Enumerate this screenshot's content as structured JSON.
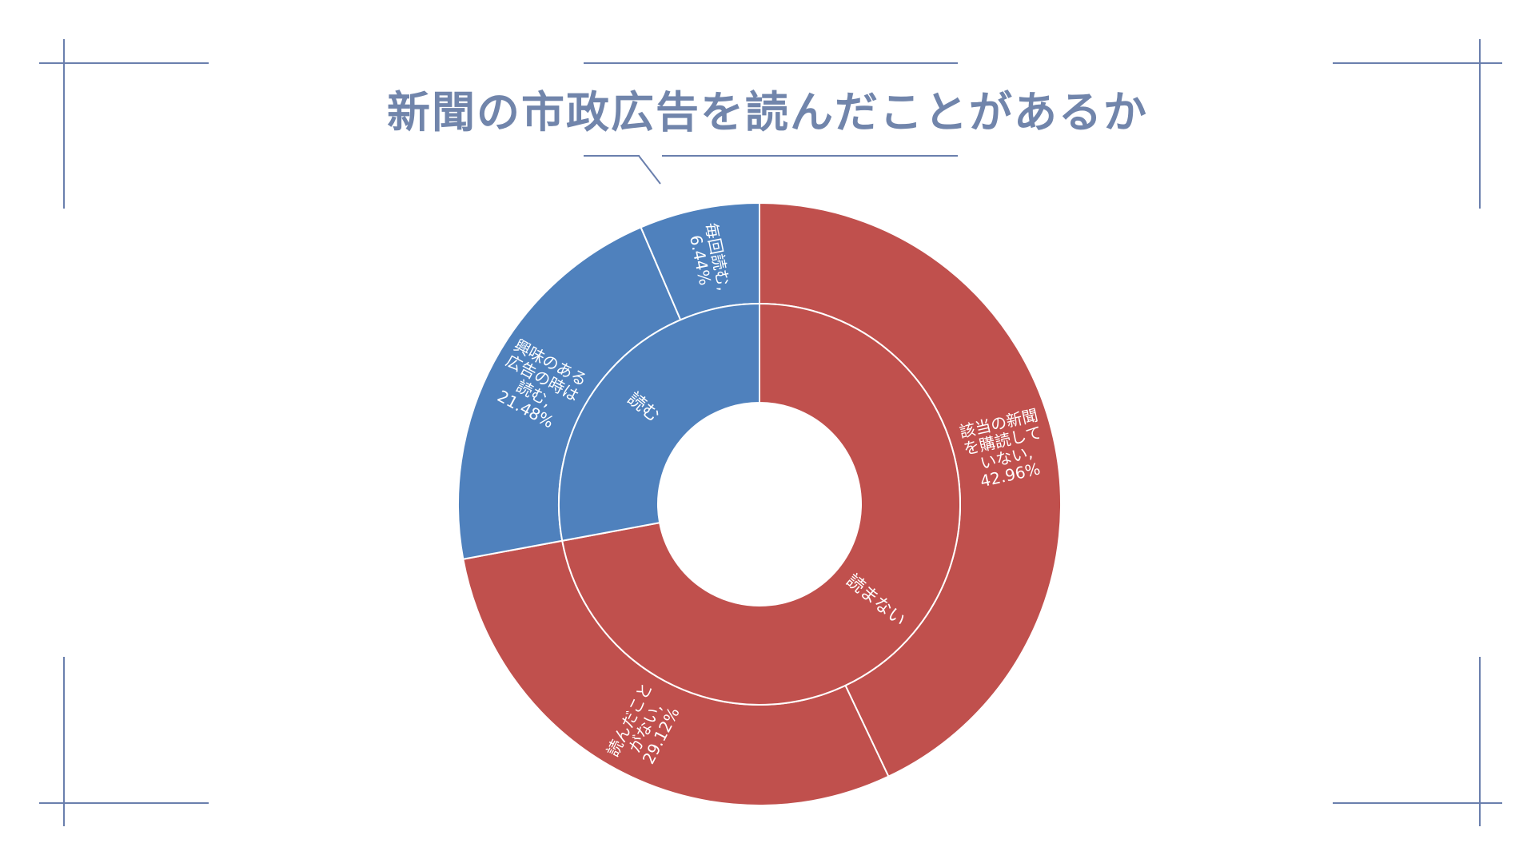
{
  "chart_data": {
    "type": "sunburst",
    "title": "新聞の市政広告を読んだことがあるか",
    "inner": [
      {
        "label": "読まない",
        "value": 72.08,
        "color": "#c0504d"
      },
      {
        "label": "読む",
        "value": 27.92,
        "color": "#4f81bd"
      }
    ],
    "outer": [
      {
        "label_lines": [
          "該当の新聞",
          "を購読して",
          "いない,",
          "42.96%"
        ],
        "value": 42.96,
        "parent": "読まない",
        "color": "#c0504d"
      },
      {
        "label_lines": [
          "読んだこと",
          "がない,",
          "29.12%"
        ],
        "value": 29.12,
        "parent": "読まない",
        "color": "#c0504d"
      },
      {
        "label_lines": [
          "興味のある",
          "広告の時は",
          "読む,",
          "21.48%"
        ],
        "value": 21.48,
        "parent": "読む",
        "color": "#4f81bd"
      },
      {
        "label_lines": [
          "毎回読む,",
          "6.44%"
        ],
        "value": 6.44,
        "parent": "読む",
        "color": "#4f81bd"
      }
    ]
  },
  "colors": {
    "frame": "#6a7fad",
    "title": "#7185ab",
    "red": "#c0504d",
    "blue": "#4f81bd"
  }
}
